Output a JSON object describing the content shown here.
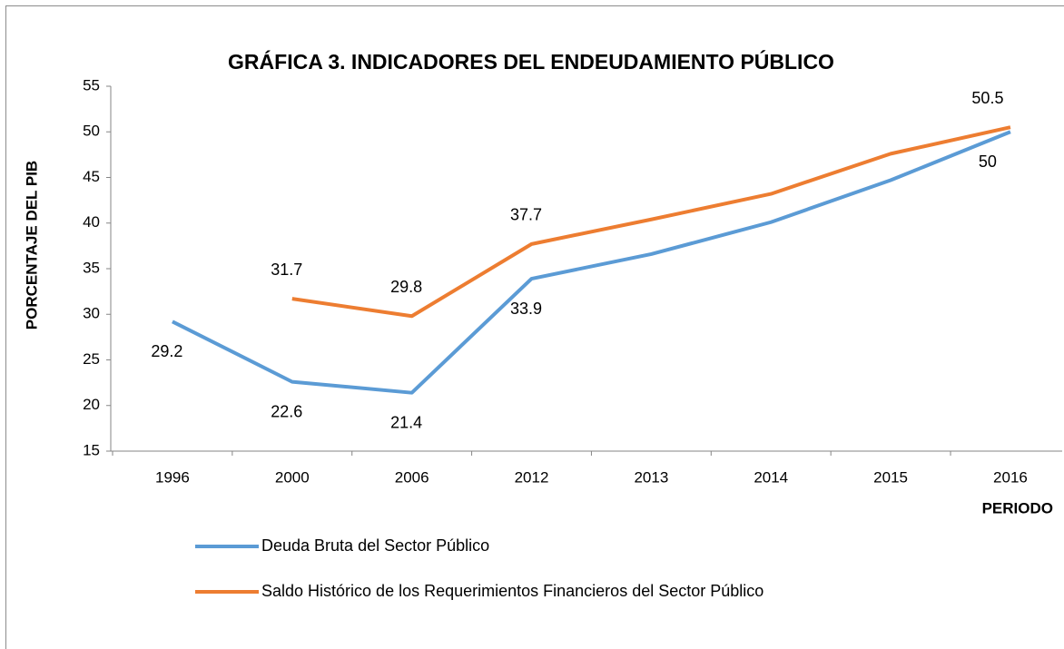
{
  "chart_data": {
    "type": "line",
    "title": "GRÁFICA 3. INDICADORES DEL ENDEUDAMIENTO PÚBLICO",
    "y_label": "PORCENTAJE DEL PIB",
    "x_label": "PERIODO",
    "categories": [
      "1996",
      "2000",
      "2006",
      "2012",
      "2013",
      "2014",
      "2015",
      "2016"
    ],
    "ylim": [
      15,
      55
    ],
    "yticks": [
      15,
      20,
      25,
      30,
      35,
      40,
      45,
      50,
      55
    ],
    "series": [
      {
        "name": "Deuda Bruta del Sector Público",
        "color": "#5b9bd5",
        "values": [
          29.2,
          22.6,
          21.4,
          33.9,
          36.6,
          40.1,
          44.7,
          50
        ],
        "value_labels": [
          "29.2",
          "22.6",
          "21.4",
          "33.9",
          null,
          null,
          null,
          "50"
        ]
      },
      {
        "name": "Saldo Histórico de los Requerimientos Financieros del Sector Público",
        "color": "#ed7d31",
        "values": [
          null,
          31.7,
          29.8,
          37.7,
          40.4,
          43.2,
          47.6,
          50.5
        ],
        "value_labels": [
          null,
          "31.7",
          "29.8",
          "37.7",
          null,
          null,
          null,
          "50.5"
        ]
      }
    ]
  }
}
